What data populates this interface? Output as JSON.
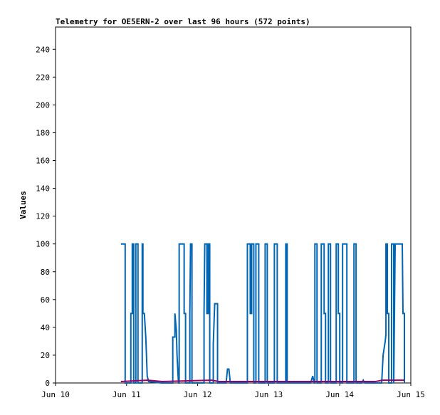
{
  "chart_data": {
    "type": "line",
    "title": "Telemetry for OE5ERN-2 over last 96 hours (572 points)",
    "y_label": "Values",
    "xlim": [
      0,
      5
    ],
    "xticks": [
      {
        "value": 0,
        "label": "Jun 10"
      },
      {
        "value": 1,
        "label": "Jun 11"
      },
      {
        "value": 2,
        "label": "Jun 12"
      },
      {
        "value": 3,
        "label": "Jun 13"
      },
      {
        "value": 4,
        "label": "Jun 14"
      },
      {
        "value": 5,
        "label": "Jun 15"
      }
    ],
    "ylim": [
      0,
      256
    ],
    "yticks": [
      0,
      20,
      40,
      60,
      80,
      100,
      120,
      140,
      160,
      180,
      200,
      220,
      240
    ],
    "series": [
      {
        "color": "#0066b3",
        "x": [
          0.92,
          0.98,
          0.98,
          1.06,
          1.06,
          1.08,
          1.08,
          1.1,
          1.1,
          1.13,
          1.13,
          1.16,
          1.16,
          1.22,
          1.22,
          1.23,
          1.23,
          1.25,
          1.27,
          1.28,
          1.29,
          1.31,
          1.49,
          1.65,
          1.65,
          1.68,
          1.68,
          1.7,
          1.71,
          1.73,
          1.74,
          1.74,
          1.81,
          1.81,
          1.83,
          1.83,
          1.89,
          1.89,
          1.9,
          1.92,
          1.92,
          2.09,
          2.09,
          2.1,
          2.13,
          2.13,
          2.15,
          2.15,
          2.17,
          2.17,
          2.22,
          2.22,
          2.24,
          2.28,
          2.28,
          2.4,
          2.42,
          2.44,
          2.46,
          2.7,
          2.7,
          2.74,
          2.74,
          2.76,
          2.76,
          2.79,
          2.79,
          2.82,
          2.82,
          2.86,
          2.86,
          2.95,
          2.95,
          2.98,
          2.98,
          3.08,
          3.08,
          3.12,
          3.12,
          3.24,
          3.24,
          3.26,
          3.26,
          3.59,
          3.62,
          3.64,
          3.65,
          3.65,
          3.68,
          3.68,
          3.74,
          3.74,
          3.78,
          3.78,
          3.8,
          3.8,
          3.84,
          3.84,
          3.87,
          3.87,
          3.95,
          3.95,
          3.98,
          3.98,
          4.0,
          4.0,
          4.04,
          4.04,
          4.1,
          4.1,
          4.2,
          4.2,
          4.23,
          4.23,
          4.31,
          4.33,
          4.35,
          4.59,
          4.61,
          4.64,
          4.65,
          4.65,
          4.67,
          4.67,
          4.69,
          4.69,
          4.73,
          4.73,
          4.76,
          4.76,
          4.78,
          4.88,
          4.89,
          4.91,
          4.91
        ],
        "values": [
          100,
          100,
          0,
          0,
          50,
          50,
          100,
          100,
          0,
          0,
          100,
          100,
          0,
          0,
          100,
          100,
          50,
          50,
          33,
          20,
          5,
          1,
          0,
          0,
          33,
          33,
          50,
          38,
          20,
          0,
          0,
          100,
          100,
          50,
          50,
          0,
          0,
          50,
          100,
          100,
          0,
          0,
          50,
          100,
          100,
          50,
          50,
          100,
          100,
          0,
          0,
          28,
          57,
          57,
          0,
          0,
          10,
          10,
          0,
          0,
          100,
          100,
          50,
          50,
          100,
          100,
          0,
          0,
          100,
          100,
          0,
          0,
          100,
          100,
          0,
          0,
          100,
          100,
          0,
          0,
          100,
          100,
          0,
          0,
          5,
          0,
          0,
          100,
          100,
          0,
          0,
          100,
          100,
          50,
          50,
          0,
          0,
          100,
          100,
          0,
          0,
          100,
          100,
          50,
          50,
          0,
          0,
          100,
          100,
          0,
          0,
          100,
          100,
          0,
          0,
          2,
          0,
          0,
          20,
          30,
          35,
          100,
          100,
          50,
          50,
          0,
          0,
          100,
          100,
          0,
          100,
          100,
          50,
          50,
          0
        ]
      },
      {
        "color": "#990066",
        "x": [
          0.92,
          1.3,
          1.5,
          2.2,
          2.3,
          2.5,
          3.6,
          4.5,
          4.6,
          4.91
        ],
        "values": [
          1,
          2,
          1,
          2,
          1,
          1,
          1,
          1,
          2,
          2
        ]
      }
    ]
  }
}
